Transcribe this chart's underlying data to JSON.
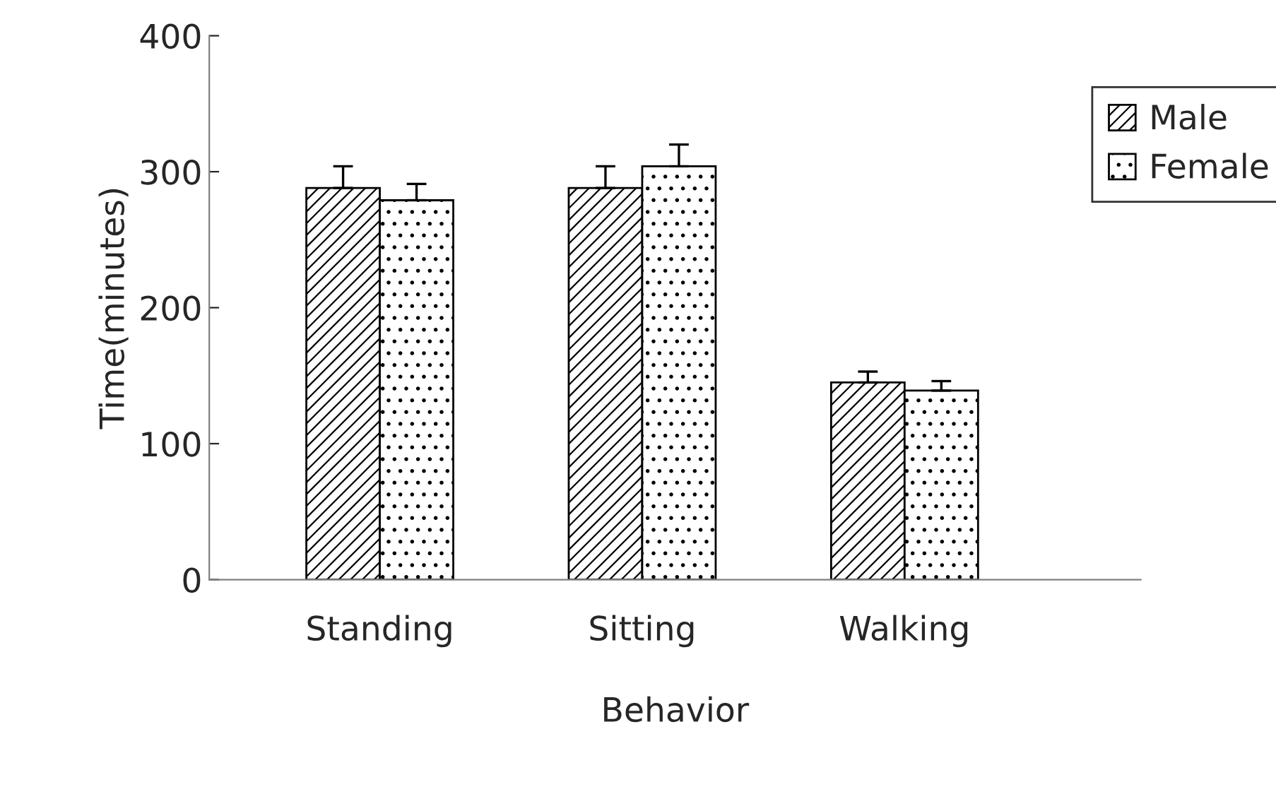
{
  "chart_data": {
    "type": "bar",
    "xlabel": "Behavior",
    "ylabel": "Time(minutes)",
    "categories": [
      "Standing",
      "Sitting",
      "Walking"
    ],
    "series": [
      {
        "name": "Male",
        "color": "#000000",
        "values": [
          288,
          288,
          145
        ],
        "errors": [
          16,
          16,
          8
        ]
      },
      {
        "name": "Female",
        "color": "#000000",
        "values": [
          279,
          304,
          139
        ],
        "errors": [
          12,
          16,
          7
        ]
      }
    ],
    "ylim": [
      0,
      400
    ],
    "yticks": [
      0,
      100,
      200,
      300,
      400
    ],
    "grid": false,
    "legend": "right"
  }
}
